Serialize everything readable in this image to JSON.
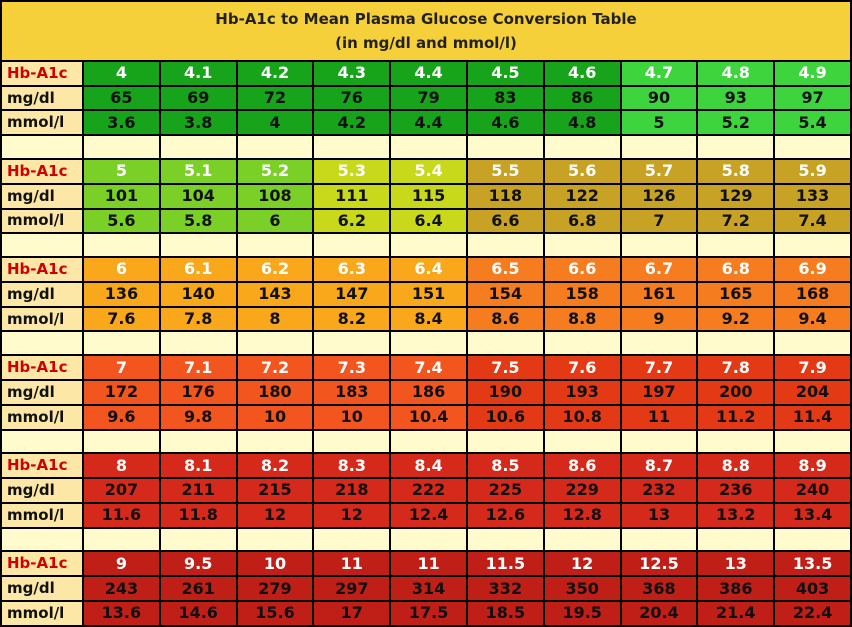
{
  "title_line1": "Hb-A1c to Mean Plasma Glucose Conversion Table",
  "title_line2": "(in mg/dl and mmol/l)",
  "row_labels": {
    "hba1c": "Hb-A1c",
    "mgdl": "mg/dl",
    "mmol": "mmol/l"
  },
  "blocks": [
    {
      "hba1c": [
        "4",
        "4.1",
        "4.2",
        "4.3",
        "4.4",
        "4.5",
        "4.6",
        "4.7",
        "4.8",
        "4.9"
      ],
      "mgdl": [
        "65",
        "69",
        "72",
        "76",
        "79",
        "83",
        "86",
        "90",
        "93",
        "97"
      ],
      "mmol": [
        "3.6",
        "3.8",
        "4",
        "4.2",
        "4.4",
        "4.6",
        "4.8",
        "5",
        "5.2",
        "5.4"
      ],
      "colors": [
        "#17a31a",
        "#17a31a",
        "#17a31a",
        "#17a31a",
        "#17a31a",
        "#17a31a",
        "#17a31a",
        "#3ed43e",
        "#3ed43e",
        "#3ed43e"
      ]
    },
    {
      "hba1c": [
        "5",
        "5.1",
        "5.2",
        "5.3",
        "5.4",
        "5.5",
        "5.6",
        "5.7",
        "5.8",
        "5.9"
      ],
      "mgdl": [
        "101",
        "104",
        "108",
        "111",
        "115",
        "118",
        "122",
        "126",
        "129",
        "133"
      ],
      "mmol": [
        "5.6",
        "5.8",
        "6",
        "6.2",
        "6.4",
        "6.6",
        "6.8",
        "7",
        "7.2",
        "7.4"
      ],
      "colors": [
        "#7ad026",
        "#7ad026",
        "#7ad026",
        "#c8d81a",
        "#c8d81a",
        "#c8a224",
        "#c8a224",
        "#c8a224",
        "#c8a224",
        "#c8a224"
      ]
    },
    {
      "hba1c": [
        "6",
        "6.1",
        "6.2",
        "6.3",
        "6.4",
        "6.5",
        "6.6",
        "6.7",
        "6.8",
        "6.9"
      ],
      "mgdl": [
        "136",
        "140",
        "143",
        "147",
        "151",
        "154",
        "158",
        "161",
        "165",
        "168"
      ],
      "mmol": [
        "7.6",
        "7.8",
        "8",
        "8.2",
        "8.4",
        "8.6",
        "8.8",
        "9",
        "9.2",
        "9.4"
      ],
      "colors": [
        "#f9a81b",
        "#f9a81b",
        "#f9a81b",
        "#f9a81b",
        "#f9a81b",
        "#f57d1f",
        "#f57d1f",
        "#f57d1f",
        "#f57d1f",
        "#f57d1f"
      ]
    },
    {
      "hba1c": [
        "7",
        "7.1",
        "7.2",
        "7.3",
        "7.4",
        "7.5",
        "7.6",
        "7.7",
        "7.8",
        "7.9"
      ],
      "mgdl": [
        "172",
        "176",
        "180",
        "183",
        "186",
        "190",
        "193",
        "197",
        "200",
        "204"
      ],
      "mmol": [
        "9.6",
        "9.8",
        "10",
        "10",
        "10.4",
        "10.6",
        "10.8",
        "11",
        "11.2",
        "11.4"
      ],
      "colors": [
        "#f2551d",
        "#f2551d",
        "#f2551d",
        "#f2551d",
        "#f2551d",
        "#e33a15",
        "#e33a15",
        "#e33a15",
        "#e33a15",
        "#e33a15"
      ]
    },
    {
      "hba1c": [
        "8",
        "8.1",
        "8.2",
        "8.3",
        "8.4",
        "8.5",
        "8.6",
        "8.7",
        "8.8",
        "8.9"
      ],
      "mgdl": [
        "207",
        "211",
        "215",
        "218",
        "222",
        "225",
        "229",
        "232",
        "236",
        "240"
      ],
      "mmol": [
        "11.6",
        "11.8",
        "12",
        "12",
        "12.4",
        "12.6",
        "12.8",
        "13",
        "13.2",
        "13.4"
      ],
      "colors": [
        "#d4291b",
        "#d4291b",
        "#d4291b",
        "#d4291b",
        "#d4291b",
        "#d4291b",
        "#d4291b",
        "#d4291b",
        "#d4291b",
        "#d4291b"
      ]
    },
    {
      "hba1c": [
        "9",
        "9.5",
        "10",
        "11",
        "11",
        "11.5",
        "12",
        "12.5",
        "13",
        "13.5"
      ],
      "mgdl": [
        "243",
        "261",
        "279",
        "297",
        "314",
        "332",
        "350",
        "368",
        "386",
        "403"
      ],
      "mmol": [
        "13.6",
        "14.6",
        "15.6",
        "17",
        "17.5",
        "18.5",
        "19.5",
        "20.4",
        "21.4",
        "22.4"
      ],
      "colors": [
        "#c01f18",
        "#c01f18",
        "#c01f18",
        "#c01f18",
        "#c01f18",
        "#c01f18",
        "#c01f18",
        "#c01f18",
        "#c01f18",
        "#c01f18"
      ]
    }
  ]
}
